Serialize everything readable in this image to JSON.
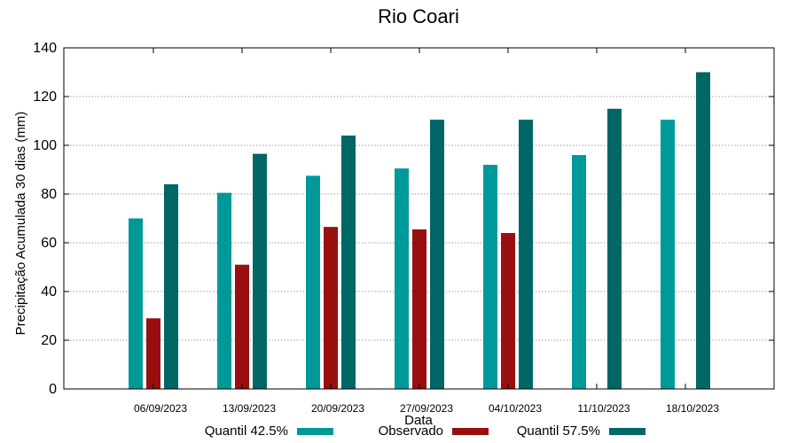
{
  "chart_data": {
    "type": "bar",
    "title": "Rio Coari",
    "xlabel": "Data",
    "ylabel": "Precipitação Acumulada 30 dias (mm)",
    "ylim": [
      0,
      140
    ],
    "yticks": [
      0,
      20,
      40,
      60,
      80,
      100,
      120,
      140
    ],
    "grid": true,
    "legend_position": "bottom",
    "categories": [
      "06/09/2023",
      "13/09/2023",
      "20/09/2023",
      "27/09/2023",
      "04/10/2023",
      "11/10/2023",
      "18/10/2023"
    ],
    "series": [
      {
        "name": "Quantil 42.5%",
        "color": "#009999",
        "values": [
          70,
          80.5,
          87.5,
          90.5,
          92,
          96,
          110.5
        ]
      },
      {
        "name": "Observado",
        "color": "#990f0f",
        "values": [
          29,
          51,
          66.5,
          65.5,
          64,
          null,
          null
        ]
      },
      {
        "name": "Quantil 57.5%",
        "color": "#006666",
        "values": [
          84,
          96.5,
          104,
          110.5,
          110.5,
          115,
          130
        ]
      }
    ]
  }
}
